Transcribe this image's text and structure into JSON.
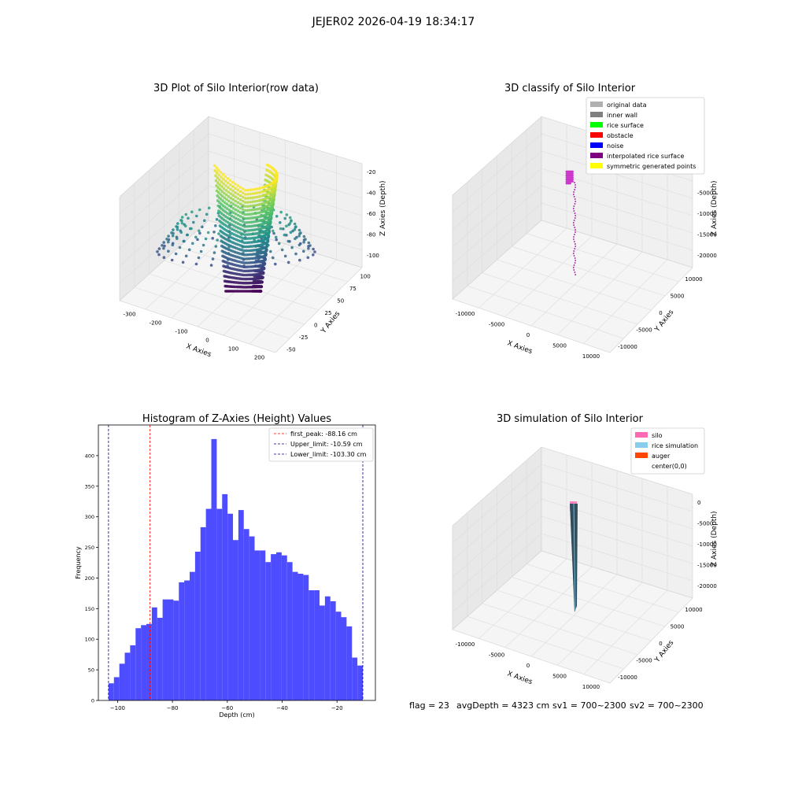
{
  "suptitle": "JEJER02 2026-04-19 18:34:17",
  "footer": {
    "flag": "flag = 23",
    "avg": "avgDepth = 4323 cm",
    "sv1": "sv1 = 700~2300",
    "sv2": "sv2 = 700~2300"
  },
  "colors": {
    "hist_bar": "#4d4dff",
    "peak_line": "#ff0000",
    "limit_line": "#00008b",
    "pane_left": "#e8e8e8",
    "pane_right": "#f0f0f0",
    "pane_floor": "#f5f5f5"
  },
  "chart_data": [
    {
      "type": "scatter",
      "subtype": "3d",
      "title": "3D Plot of Silo Interior(row data)",
      "xlabel": "X Axies",
      "ylabel": "Y Axies",
      "zlabel": "Z Axies (Depth)",
      "x_ticks": [
        "-300",
        "-200",
        "-100",
        "0",
        "100",
        "200"
      ],
      "y_ticks": [
        "-50",
        "-25",
        "0",
        "25",
        "50",
        "75",
        "100"
      ],
      "z_ticks": [
        "-20",
        "-40",
        "-60",
        "-80",
        "-100"
      ],
      "colormap": "viridis",
      "xlim": [
        -330,
        230
      ],
      "ylim": [
        -55,
        115
      ],
      "zlim": [
        -110,
        -10
      ]
    },
    {
      "type": "scatter",
      "subtype": "3d",
      "title": "3D classify of Silo Interior",
      "xlabel": "X Axies",
      "ylabel": "Y Axies",
      "zlabel": "Z Axies (Depth)",
      "x_ticks": [
        "-10000",
        "-5000",
        "0",
        "5000",
        "10000"
      ],
      "y_ticks": [
        "-10000",
        "-5000",
        "0",
        "5000",
        "10000"
      ],
      "z_ticks": [
        "0",
        "-5000",
        "-10000",
        "-15000",
        "-20000"
      ],
      "legend_position": "top-right",
      "legend": [
        {
          "label": "original data",
          "color": "#b0b0b0"
        },
        {
          "label": "inner wall",
          "color": "#808080"
        },
        {
          "label": "rice surface",
          "color": "#00ff00"
        },
        {
          "label": "obstacle",
          "color": "#ff0000"
        },
        {
          "label": "noise",
          "color": "#0000ff"
        },
        {
          "label": "interpolated rice surface",
          "color": "#800080"
        },
        {
          "label": "symmetric generated points",
          "color": "#ffff00"
        }
      ]
    },
    {
      "type": "bar",
      "subtype": "histogram",
      "title": "Histogram of Z-Axies (Height) Values",
      "xlabel": "Depth (cm)",
      "ylabel": "Frequency",
      "xlim": [
        -107,
        -6
      ],
      "ylim": [
        0,
        450
      ],
      "x_ticks": [
        -100,
        -80,
        -60,
        -40,
        -20
      ],
      "y_ticks": [
        0,
        50,
        100,
        150,
        200,
        250,
        300,
        350,
        400
      ],
      "bin_start": -103.3,
      "bin_end": -10.59,
      "values": [
        28,
        38,
        60,
        78,
        90,
        118,
        123,
        125,
        152,
        135,
        165,
        165,
        163,
        193,
        196,
        210,
        243,
        283,
        313,
        427,
        313,
        337,
        305,
        262,
        311,
        280,
        268,
        245,
        245,
        226,
        239,
        242,
        237,
        226,
        210,
        207,
        205,
        180,
        180,
        155,
        170,
        162,
        145,
        136,
        121,
        70,
        57
      ],
      "vlines": [
        {
          "name": "first_peak",
          "x": -88.16,
          "style": "dashed",
          "color": "#ff0000"
        },
        {
          "name": "Upper_limit",
          "x": -10.59,
          "style": "dashed",
          "color": "#00008b"
        },
        {
          "name": "Lower_limit",
          "x": -103.3,
          "style": "dashed",
          "color": "#00008b"
        }
      ],
      "legend_position": "top-right",
      "legend": [
        {
          "label": "first_peak: -88.16 cm",
          "color": "#ff0000"
        },
        {
          "label": "Upper_limit: -10.59 cm",
          "color": "#00008b"
        },
        {
          "label": "Lower_limit: -103.30 cm",
          "color": "#00008b"
        }
      ]
    },
    {
      "type": "scatter",
      "subtype": "3d-surface",
      "title": "3D simulation of Silo Interior",
      "xlabel": "X Axies",
      "ylabel": "Y Axies",
      "zlabel": "Z Axies (Depth)",
      "x_ticks": [
        "-10000",
        "-5000",
        "0",
        "5000",
        "10000"
      ],
      "y_ticks": [
        "-10000",
        "-5000",
        "0",
        "5000",
        "10000"
      ],
      "z_ticks": [
        "0",
        "-5000",
        "-10000",
        "-15000",
        "-20000"
      ],
      "legend_position": "top-right",
      "legend": [
        {
          "label": "silo",
          "color": "#ff69b4"
        },
        {
          "label": "rice simulation",
          "color": "#87ceeb"
        },
        {
          "label": "auger",
          "color": "#ff4500"
        },
        {
          "label": "center(0,0)",
          "color": "#ffffff"
        }
      ]
    }
  ]
}
